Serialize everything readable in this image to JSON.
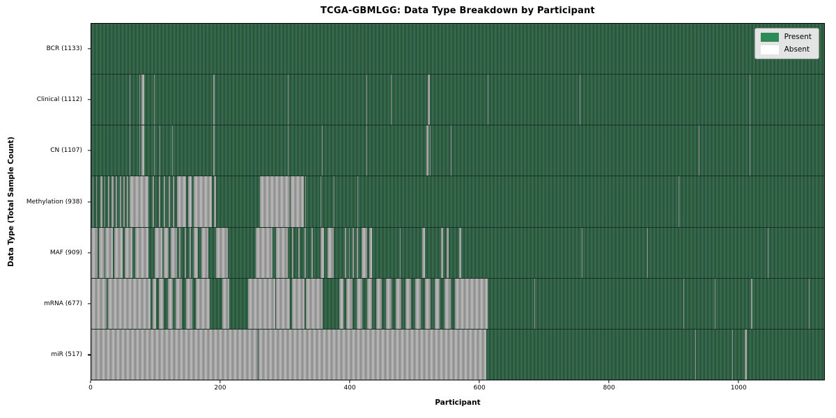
{
  "chart_data": {
    "type": "heatmap",
    "title": "TCGA-GBMLGG: Data Type Breakdown by Participant",
    "xlabel": "Participant",
    "ylabel": "Data Type (Total Sample Count)",
    "n_participants": 1133,
    "x_ticks": [
      0,
      200,
      400,
      600,
      800,
      1000
    ],
    "grid": false,
    "legend_position": "upper right",
    "legend": [
      {
        "label": "Present",
        "color": "#2e8b57"
      },
      {
        "label": "Absent",
        "color": "#ffffff"
      }
    ],
    "colors": {
      "present_fill": "#2e8b57",
      "present_stripe_dark": "#26513a",
      "present_stripe_light": "#3b6f51",
      "absent_stripe_dark": "#8a8a8a",
      "absent_stripe_light": "#bdbdbd",
      "axis": "#000000",
      "legend_bg": "#ececec"
    },
    "rows": [
      {
        "name": "BCR",
        "label": "BCR (1133)",
        "present_count": 1133,
        "absent_segments": []
      },
      {
        "name": "Clinical",
        "label": "Clinical (1112)",
        "present_count": 1112,
        "absent_segments": [
          [
            59,
            60
          ],
          [
            74,
            75
          ],
          [
            78,
            82
          ],
          [
            97,
            98
          ],
          [
            188,
            191
          ],
          [
            304,
            305
          ],
          [
            425,
            426
          ],
          [
            463,
            464
          ],
          [
            520,
            523
          ],
          [
            613,
            614
          ],
          [
            755,
            756
          ],
          [
            1018,
            1019
          ]
        ]
      },
      {
        "name": "CN",
        "label": "CN (1107)",
        "present_count": 1107,
        "absent_segments": [
          [
            59,
            60
          ],
          [
            74,
            75
          ],
          [
            78,
            82
          ],
          [
            97,
            98
          ],
          [
            106,
            107
          ],
          [
            125,
            126
          ],
          [
            188,
            191
          ],
          [
            304,
            305
          ],
          [
            357,
            358
          ],
          [
            425,
            426
          ],
          [
            518,
            521
          ],
          [
            523,
            525
          ],
          [
            556,
            557
          ],
          [
            939,
            940
          ],
          [
            1018,
            1019
          ]
        ]
      },
      {
        "name": "Methylation",
        "label": "Methylation (938)",
        "present_count": 938,
        "absent_segments": [
          [
            2,
            3
          ],
          [
            8,
            9
          ],
          [
            14,
            17
          ],
          [
            20,
            22
          ],
          [
            26,
            28
          ],
          [
            31,
            34
          ],
          [
            38,
            40
          ],
          [
            44,
            46
          ],
          [
            50,
            52
          ],
          [
            55,
            57
          ],
          [
            59,
            88
          ],
          [
            95,
            97
          ],
          [
            105,
            107
          ],
          [
            112,
            114
          ],
          [
            120,
            122
          ],
          [
            126,
            128
          ],
          [
            132,
            146
          ],
          [
            150,
            155
          ],
          [
            158,
            186
          ],
          [
            190,
            193
          ],
          [
            261,
            307
          ],
          [
            308,
            329
          ],
          [
            331,
            332
          ],
          [
            354,
            355
          ],
          [
            375,
            376
          ],
          [
            411,
            412
          ],
          [
            908,
            909
          ]
        ]
      },
      {
        "name": "MAF",
        "label": "MAF (909)",
        "present_count": 909,
        "absent_segments": [
          [
            0,
            10
          ],
          [
            12,
            20
          ],
          [
            22,
            33
          ],
          [
            36,
            48
          ],
          [
            52,
            64
          ],
          [
            68,
            88
          ],
          [
            98,
            110
          ],
          [
            112,
            120
          ],
          [
            123,
            133
          ],
          [
            136,
            138
          ],
          [
            144,
            146
          ],
          [
            152,
            154
          ],
          [
            158,
            165
          ],
          [
            170,
            181
          ],
          [
            193,
            211
          ],
          [
            254,
            280
          ],
          [
            285,
            304
          ],
          [
            310,
            312
          ],
          [
            320,
            322
          ],
          [
            330,
            332
          ],
          [
            340,
            342
          ],
          [
            354,
            360
          ],
          [
            365,
            375
          ],
          [
            392,
            394
          ],
          [
            398,
            400
          ],
          [
            404,
            406
          ],
          [
            410,
            412
          ],
          [
            418,
            426
          ],
          [
            430,
            434
          ],
          [
            477,
            478
          ],
          [
            512,
            516
          ],
          [
            541,
            544
          ],
          [
            549,
            552
          ],
          [
            569,
            572
          ],
          [
            758,
            759
          ],
          [
            859,
            860
          ],
          [
            1046,
            1047
          ]
        ]
      },
      {
        "name": "mRNA",
        "label": "mRNA (677)",
        "present_count": 677,
        "absent_segments": [
          [
            0,
            24
          ],
          [
            26,
            92
          ],
          [
            95,
            100
          ],
          [
            104,
            112
          ],
          [
            118,
            126
          ],
          [
            130,
            140
          ],
          [
            147,
            156
          ],
          [
            162,
            183
          ],
          [
            203,
            213
          ],
          [
            242,
            284
          ],
          [
            285,
            307
          ],
          [
            310,
            330
          ],
          [
            332,
            358
          ],
          [
            383,
            390
          ],
          [
            394,
            404
          ],
          [
            410,
            419
          ],
          [
            426,
            434
          ],
          [
            441,
            449
          ],
          [
            456,
            464
          ],
          [
            471,
            479
          ],
          [
            486,
            494
          ],
          [
            501,
            509
          ],
          [
            516,
            524
          ],
          [
            531,
            539
          ],
          [
            546,
            556
          ],
          [
            562,
            613
          ],
          [
            685,
            686
          ],
          [
            915,
            916
          ],
          [
            964,
            965
          ],
          [
            1020,
            1022
          ],
          [
            1109,
            1110
          ]
        ]
      },
      {
        "name": "miR",
        "label": "miR (517)",
        "present_count": 517,
        "absent_segments": [
          [
            0,
            188
          ],
          [
            189,
            257
          ],
          [
            258,
            611
          ],
          [
            934,
            935
          ],
          [
            958,
            959
          ],
          [
            991,
            992
          ],
          [
            1010,
            1013
          ]
        ]
      }
    ]
  }
}
